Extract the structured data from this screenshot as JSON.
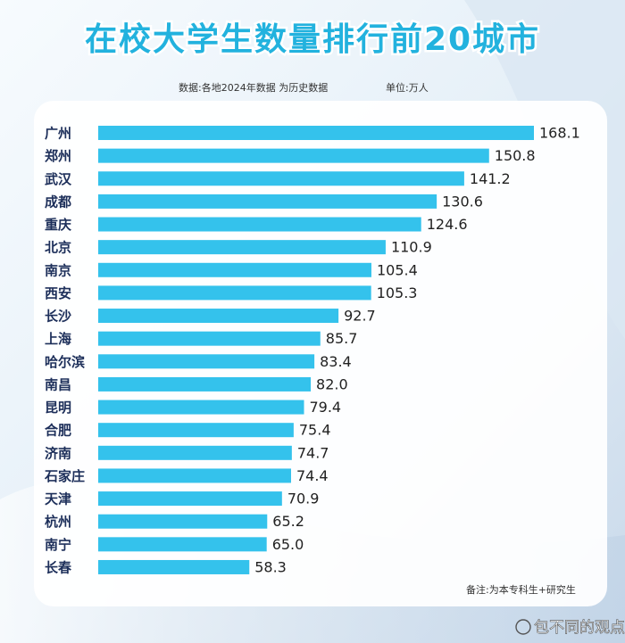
{
  "chart_data": {
    "type": "bar",
    "orientation": "horizontal",
    "title": "在校大学生数量排行前20城市",
    "subtitle": "数据:各地2024年数据  为历史数据",
    "unit": "单位:万人",
    "note": "备注:为本专科生+研究生",
    "watermark": "包不同的观点",
    "color": "#34c2ec",
    "categories": [
      "广州",
      "郑州",
      "武汉",
      "成都",
      "重庆",
      "北京",
      "南京",
      "西安",
      "长沙",
      "上海",
      "哈尔滨",
      "南昌",
      "昆明",
      "合肥",
      "济南",
      "石家庄",
      "天津",
      "杭州",
      "南宁",
      "长春"
    ],
    "values": [
      168.1,
      150.8,
      141.2,
      130.6,
      124.6,
      110.9,
      105.4,
      105.3,
      92.7,
      85.7,
      83.4,
      82.0,
      79.4,
      75.4,
      74.7,
      74.4,
      70.9,
      65.2,
      65.0,
      58.3
    ],
    "value_labels": [
      "168.1",
      "150.8",
      "141.2",
      "130.6",
      "124.6",
      "110.9",
      "105.4",
      "105.3",
      "92.7",
      "85.7",
      "83.4",
      "82.0",
      "79.4",
      "75.4",
      "74.7",
      "74.4",
      "70.9",
      "65.2",
      "65.0",
      "58.3"
    ]
  }
}
